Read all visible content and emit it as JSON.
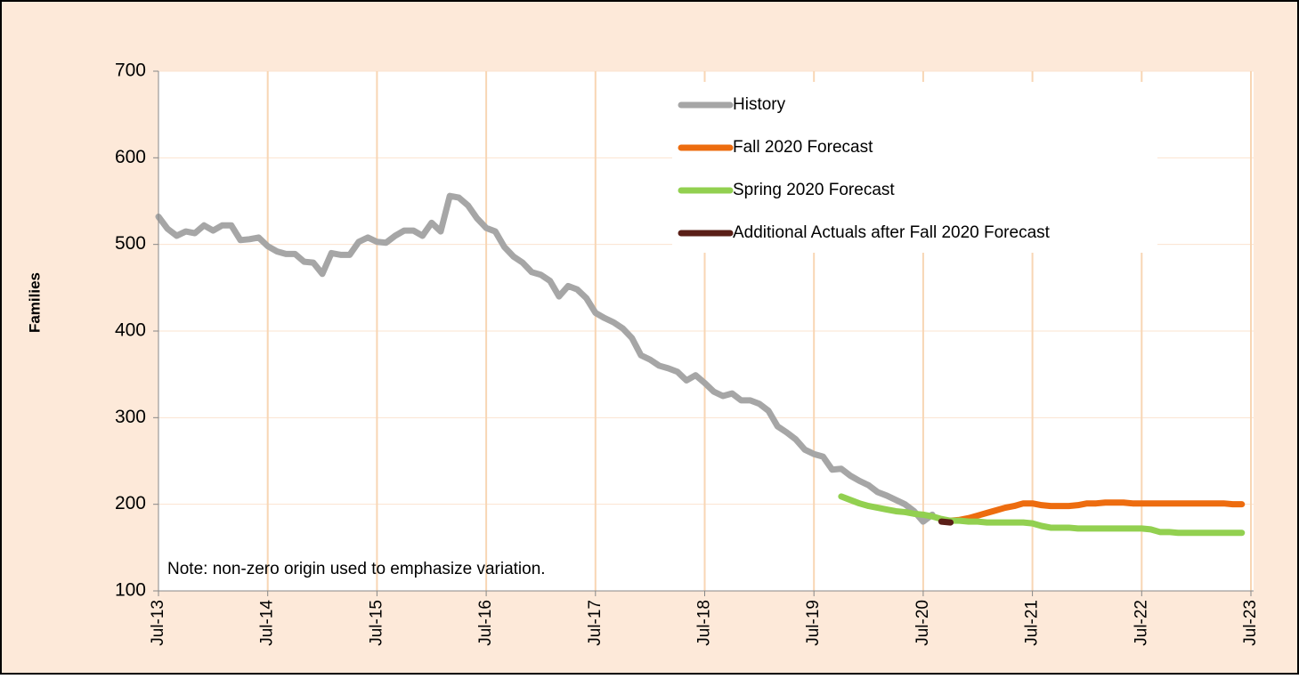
{
  "chart_data": {
    "type": "line",
    "y_label": "Families",
    "annotation": "Note: non-zero origin used to emphasize variation.",
    "ylim": [
      100,
      700
    ],
    "yticks": [
      100,
      200,
      300,
      400,
      500,
      600,
      700
    ],
    "xlim": [
      "2013-07",
      "2023-07"
    ],
    "xticks": [
      {
        "value": "2013-07",
        "label": "Jul-13"
      },
      {
        "value": "2014-07",
        "label": "Jul-14"
      },
      {
        "value": "2015-07",
        "label": "Jul-15"
      },
      {
        "value": "2016-07",
        "label": "Jul-16"
      },
      {
        "value": "2017-07",
        "label": "Jul-17"
      },
      {
        "value": "2018-07",
        "label": "Jul-18"
      },
      {
        "value": "2019-07",
        "label": "Jul-19"
      },
      {
        "value": "2020-07",
        "label": "Jul-20"
      },
      {
        "value": "2021-07",
        "label": "Jul-21"
      },
      {
        "value": "2022-07",
        "label": "Jul-22"
      },
      {
        "value": "2023-07",
        "label": "Jul-23"
      }
    ],
    "grid": true,
    "legend": "top-right",
    "series": [
      {
        "name": "History",
        "color": "#a6a6a6",
        "x": [
          "2013-07",
          "2013-08",
          "2013-09",
          "2013-10",
          "2013-11",
          "2013-12",
          "2014-01",
          "2014-02",
          "2014-03",
          "2014-04",
          "2014-05",
          "2014-06",
          "2014-07",
          "2014-08",
          "2014-09",
          "2014-10",
          "2014-11",
          "2014-12",
          "2015-01",
          "2015-02",
          "2015-03",
          "2015-04",
          "2015-05",
          "2015-06",
          "2015-07",
          "2015-08",
          "2015-09",
          "2015-10",
          "2015-11",
          "2015-12",
          "2016-01",
          "2016-02",
          "2016-03",
          "2016-04",
          "2016-05",
          "2016-06",
          "2016-07",
          "2016-08",
          "2016-09",
          "2016-10",
          "2016-11",
          "2016-12",
          "2017-01",
          "2017-02",
          "2017-03",
          "2017-04",
          "2017-05",
          "2017-06",
          "2017-07",
          "2017-08",
          "2017-09",
          "2017-10",
          "2017-11",
          "2017-12",
          "2018-01",
          "2018-02",
          "2018-03",
          "2018-04",
          "2018-05",
          "2018-06",
          "2018-07",
          "2018-08",
          "2018-09",
          "2018-10",
          "2018-11",
          "2018-12",
          "2019-01",
          "2019-02",
          "2019-03",
          "2019-04",
          "2019-05",
          "2019-06",
          "2019-07",
          "2019-08",
          "2019-09",
          "2019-10",
          "2019-11",
          "2019-12",
          "2020-01",
          "2020-02",
          "2020-03",
          "2020-04",
          "2020-05",
          "2020-06",
          "2020-07",
          "2020-08"
        ],
        "values": [
          532,
          518,
          510,
          515,
          513,
          522,
          516,
          522,
          522,
          505,
          506,
          508,
          498,
          492,
          489,
          489,
          480,
          479,
          466,
          490,
          488,
          488,
          503,
          508,
          503,
          502,
          510,
          516,
          516,
          510,
          525,
          515,
          556,
          554,
          545,
          530,
          519,
          515,
          497,
          486,
          479,
          468,
          465,
          458,
          440,
          452,
          448,
          438,
          421,
          415,
          410,
          403,
          392,
          372,
          367,
          360,
          357,
          353,
          343,
          349,
          340,
          330,
          325,
          328,
          320,
          320,
          316,
          308,
          290,
          283,
          275,
          263,
          258,
          255,
          240,
          241,
          233,
          227,
          222,
          214,
          210,
          205,
          200,
          192,
          180,
          188
        ]
      },
      {
        "name": "Fall 2020 Forecast",
        "color": "#ed6c0f",
        "x": [
          "2020-10",
          "2020-11",
          "2020-12",
          "2021-01",
          "2021-02",
          "2021-03",
          "2021-04",
          "2021-05",
          "2021-06",
          "2021-07",
          "2021-08",
          "2021-09",
          "2021-10",
          "2021-11",
          "2021-12",
          "2022-01",
          "2022-02",
          "2022-03",
          "2022-04",
          "2022-05",
          "2022-06",
          "2022-07",
          "2022-08",
          "2022-09",
          "2022-10",
          "2022-11",
          "2022-12",
          "2023-01",
          "2023-02",
          "2023-03",
          "2023-04",
          "2023-05",
          "2023-06"
        ],
        "values": [
          181,
          182,
          184,
          187,
          190,
          193,
          196,
          198,
          201,
          201,
          199,
          198,
          198,
          198,
          199,
          201,
          201,
          202,
          202,
          202,
          201,
          201,
          201,
          201,
          201,
          201,
          201,
          201,
          201,
          201,
          201,
          200,
          200
        ]
      },
      {
        "name": "Spring 2020 Forecast",
        "color": "#92d050",
        "x": [
          "2019-10",
          "2019-11",
          "2019-12",
          "2020-01",
          "2020-02",
          "2020-03",
          "2020-04",
          "2020-05",
          "2020-06",
          "2020-07",
          "2020-08",
          "2020-09",
          "2020-10",
          "2020-11",
          "2020-12",
          "2021-01",
          "2021-02",
          "2021-03",
          "2021-04",
          "2021-05",
          "2021-06",
          "2021-07",
          "2021-08",
          "2021-09",
          "2021-10",
          "2021-11",
          "2021-12",
          "2022-01",
          "2022-02",
          "2022-03",
          "2022-04",
          "2022-05",
          "2022-06",
          "2022-07",
          "2022-08",
          "2022-09",
          "2022-10",
          "2022-11",
          "2022-12",
          "2023-01",
          "2023-02",
          "2023-03",
          "2023-04",
          "2023-05",
          "2023-06"
        ],
        "values": [
          209,
          205,
          201,
          198,
          196,
          194,
          192,
          191,
          189,
          188,
          186,
          183,
          181,
          181,
          180,
          180,
          179,
          179,
          179,
          179,
          179,
          178,
          175,
          173,
          173,
          173,
          172,
          172,
          172,
          172,
          172,
          172,
          172,
          172,
          171,
          168,
          168,
          167,
          167,
          167,
          167,
          167,
          167,
          167,
          167
        ]
      },
      {
        "name": "Additional Actuals after Fall 2020 Forecast",
        "color": "#5a1f17",
        "x": [
          "2020-09",
          "2020-10"
        ],
        "values": [
          180,
          179
        ]
      }
    ]
  }
}
